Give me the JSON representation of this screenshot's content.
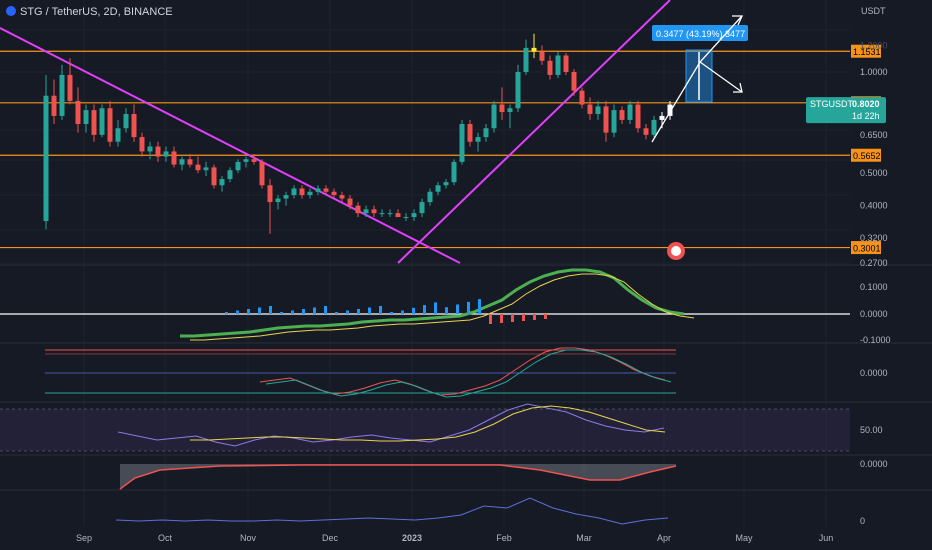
{
  "header": {
    "symbol": "STG / TetherUS, 2D, BINANCE",
    "currency": "USDT"
  },
  "chart_data": {
    "type": "candlestick",
    "symbol": "STGUSDT",
    "timeframe": "2D",
    "exchange": "BINANCE",
    "x_labels": [
      "Sep",
      "Oct",
      "Nov",
      "Dec",
      "2023",
      "Feb",
      "Mar",
      "Apr",
      "May",
      "Jun"
    ],
    "price_axis": {
      "scale": "log",
      "ticks": [
        "1.0000",
        "0.6500",
        "0.5000",
        "0.4000",
        "0.3200",
        "0.2700"
      ],
      "ticks_faint": [
        "1.2000"
      ]
    },
    "horizontal_levels": [
      {
        "value": "1.1531"
      },
      {
        "value": "0.8097"
      },
      {
        "value": "0.5652"
      },
      {
        "value": "0.3001"
      }
    ],
    "current_price": {
      "label": "STGUSDT",
      "value": "0.8020",
      "countdown": "1d 22h"
    },
    "measure_label": "0.3477 (43.19%) 3477",
    "candles_approx": [
      [
        0.36,
        0.98,
        0.34,
        0.85
      ],
      [
        0.85,
        0.95,
        0.7,
        0.74
      ],
      [
        0.74,
        1.05,
        0.72,
        0.98
      ],
      [
        0.98,
        1.1,
        0.8,
        0.82
      ],
      [
        0.82,
        0.9,
        0.66,
        0.7
      ],
      [
        0.7,
        0.8,
        0.66,
        0.77
      ],
      [
        0.77,
        0.8,
        0.62,
        0.65
      ],
      [
        0.65,
        0.8,
        0.64,
        0.78
      ],
      [
        0.78,
        0.82,
        0.6,
        0.62
      ],
      [
        0.62,
        0.72,
        0.6,
        0.68
      ],
      [
        0.68,
        0.78,
        0.66,
        0.75
      ],
      [
        0.75,
        0.8,
        0.62,
        0.64
      ],
      [
        0.64,
        0.66,
        0.56,
        0.58
      ],
      [
        0.58,
        0.62,
        0.55,
        0.6
      ],
      [
        0.6,
        0.62,
        0.54,
        0.56
      ],
      [
        0.56,
        0.6,
        0.54,
        0.58
      ],
      [
        0.58,
        0.6,
        0.52,
        0.53
      ],
      [
        0.53,
        0.56,
        0.51,
        0.55
      ],
      [
        0.55,
        0.57,
        0.52,
        0.53
      ],
      [
        0.53,
        0.56,
        0.5,
        0.51
      ],
      [
        0.51,
        0.54,
        0.49,
        0.52
      ],
      [
        0.52,
        0.53,
        0.45,
        0.46
      ],
      [
        0.46,
        0.49,
        0.44,
        0.48
      ],
      [
        0.48,
        0.52,
        0.47,
        0.51
      ],
      [
        0.51,
        0.55,
        0.5,
        0.54
      ],
      [
        0.54,
        0.56,
        0.52,
        0.55
      ],
      [
        0.55,
        0.57,
        0.53,
        0.54
      ],
      [
        0.54,
        0.55,
        0.45,
        0.46
      ],
      [
        0.46,
        0.48,
        0.33,
        0.41
      ],
      [
        0.41,
        0.43,
        0.39,
        0.42
      ],
      [
        0.42,
        0.44,
        0.4,
        0.43
      ],
      [
        0.43,
        0.46,
        0.42,
        0.45
      ],
      [
        0.45,
        0.46,
        0.42,
        0.43
      ],
      [
        0.43,
        0.45,
        0.42,
        0.44
      ],
      [
        0.44,
        0.46,
        0.43,
        0.45
      ],
      [
        0.45,
        0.46,
        0.43,
        0.44
      ],
      [
        0.44,
        0.45,
        0.42,
        0.43
      ],
      [
        0.43,
        0.44,
        0.41,
        0.42
      ],
      [
        0.42,
        0.43,
        0.39,
        0.4
      ],
      [
        0.4,
        0.41,
        0.37,
        0.38
      ],
      [
        0.38,
        0.4,
        0.37,
        0.39
      ],
      [
        0.39,
        0.4,
        0.37,
        0.38
      ],
      [
        0.38,
        0.39,
        0.37,
        0.38
      ],
      [
        0.38,
        0.39,
        0.37,
        0.38
      ],
      [
        0.38,
        0.39,
        0.37,
        0.37
      ],
      [
        0.37,
        0.38,
        0.36,
        0.37
      ],
      [
        0.37,
        0.39,
        0.36,
        0.38
      ],
      [
        0.38,
        0.42,
        0.37,
        0.41
      ],
      [
        0.41,
        0.45,
        0.4,
        0.44
      ],
      [
        0.44,
        0.47,
        0.43,
        0.46
      ],
      [
        0.46,
        0.48,
        0.45,
        0.47
      ],
      [
        0.47,
        0.55,
        0.46,
        0.54
      ],
      [
        0.54,
        0.72,
        0.53,
        0.7
      ],
      [
        0.7,
        0.72,
        0.6,
        0.62
      ],
      [
        0.62,
        0.66,
        0.58,
        0.64
      ],
      [
        0.64,
        0.7,
        0.62,
        0.68
      ],
      [
        0.68,
        0.82,
        0.66,
        0.8
      ],
      [
        0.8,
        0.9,
        0.72,
        0.76
      ],
      [
        0.76,
        0.8,
        0.68,
        0.78
      ],
      [
        0.78,
        1.05,
        0.76,
        1.0
      ],
      [
        1.0,
        1.25,
        0.98,
        1.18
      ],
      [
        1.18,
        1.3,
        1.1,
        1.15
      ],
      [
        1.15,
        1.2,
        1.05,
        1.08
      ],
      [
        1.08,
        1.12,
        0.95,
        0.98
      ],
      [
        0.98,
        1.15,
        0.96,
        1.12
      ],
      [
        1.12,
        1.14,
        0.98,
        1.0
      ],
      [
        1.0,
        1.02,
        0.85,
        0.88
      ],
      [
        0.88,
        0.9,
        0.78,
        0.8
      ],
      [
        0.8,
        0.84,
        0.72,
        0.75
      ],
      [
        0.75,
        0.82,
        0.72,
        0.79
      ],
      [
        0.79,
        0.82,
        0.62,
        0.66
      ],
      [
        0.66,
        0.8,
        0.64,
        0.77
      ],
      [
        0.77,
        0.79,
        0.7,
        0.72
      ],
      [
        0.72,
        0.82,
        0.7,
        0.8
      ],
      [
        0.8,
        0.82,
        0.66,
        0.68
      ],
      [
        0.68,
        0.7,
        0.63,
        0.65
      ],
      [
        0.65,
        0.74,
        0.64,
        0.72
      ],
      [
        0.72,
        0.76,
        0.68,
        0.74
      ],
      [
        0.74,
        0.82,
        0.72,
        0.8
      ]
    ],
    "indicator_axes": {
      "macd": [
        "0.1000",
        "0.0000",
        "-0.1000"
      ],
      "oscillator": [
        "0.0000"
      ],
      "rsi": [
        "50.00"
      ],
      "drawdown": [
        "0.0000"
      ],
      "volume": [
        "0"
      ]
    },
    "colors": {
      "background": "#161a25",
      "up": "#26a69a",
      "down": "#ef5350",
      "level": "#f7931a",
      "trendline": "#e040fb",
      "highlight": "#ffeb3b",
      "measure": "#2196f3"
    }
  }
}
